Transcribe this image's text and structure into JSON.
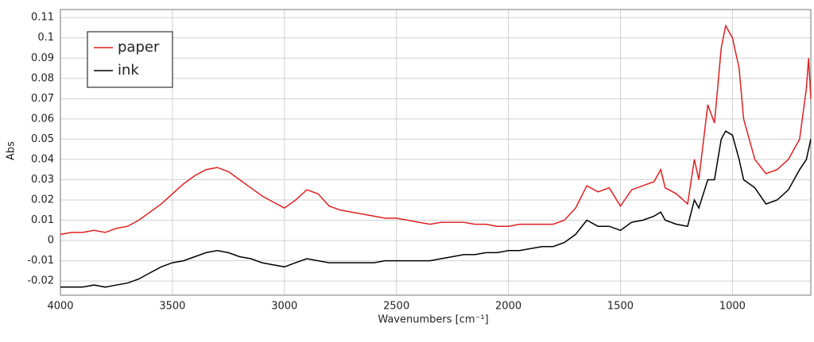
{
  "chart_data": {
    "type": "line",
    "xlabel": "Wavenumbers [cm⁻¹]",
    "ylabel": "Abs",
    "x": [
      4000,
      3950,
      3900,
      3850,
      3800,
      3750,
      3700,
      3650,
      3600,
      3550,
      3500,
      3450,
      3400,
      3350,
      3300,
      3250,
      3200,
      3150,
      3100,
      3050,
      3000,
      2950,
      2900,
      2850,
      2800,
      2750,
      2700,
      2650,
      2600,
      2550,
      2500,
      2450,
      2400,
      2350,
      2300,
      2250,
      2200,
      2150,
      2100,
      2050,
      2000,
      1950,
      1900,
      1850,
      1800,
      1750,
      1700,
      1650,
      1600,
      1550,
      1500,
      1450,
      1400,
      1350,
      1320,
      1300,
      1250,
      1200,
      1170,
      1150,
      1110,
      1080,
      1050,
      1030,
      1000,
      970,
      950,
      900,
      850,
      800,
      750,
      700,
      670,
      660,
      650
    ],
    "series": [
      {
        "name": "paper",
        "color": "#e02020",
        "values": [
          0.003,
          0.004,
          0.004,
          0.005,
          0.004,
          0.006,
          0.007,
          0.01,
          0.014,
          0.018,
          0.023,
          0.028,
          0.032,
          0.035,
          0.036,
          0.034,
          0.03,
          0.026,
          0.022,
          0.019,
          0.016,
          0.02,
          0.025,
          0.023,
          0.017,
          0.015,
          0.014,
          0.013,
          0.012,
          0.011,
          0.011,
          0.01,
          0.009,
          0.008,
          0.009,
          0.009,
          0.009,
          0.008,
          0.008,
          0.007,
          0.007,
          0.008,
          0.008,
          0.008,
          0.008,
          0.01,
          0.016,
          0.027,
          0.024,
          0.026,
          0.017,
          0.025,
          0.027,
          0.029,
          0.035,
          0.026,
          0.023,
          0.018,
          0.04,
          0.03,
          0.067,
          0.058,
          0.095,
          0.106,
          0.1,
          0.085,
          0.06,
          0.04,
          0.033,
          0.035,
          0.04,
          0.05,
          0.075,
          0.09,
          0.07
        ]
      },
      {
        "name": "ink",
        "color": "#000000",
        "values": [
          -0.023,
          -0.023,
          -0.023,
          -0.022,
          -0.023,
          -0.022,
          -0.021,
          -0.019,
          -0.016,
          -0.013,
          -0.011,
          -0.01,
          -0.008,
          -0.006,
          -0.005,
          -0.006,
          -0.008,
          -0.009,
          -0.011,
          -0.012,
          -0.013,
          -0.011,
          -0.009,
          -0.01,
          -0.011,
          -0.011,
          -0.011,
          -0.011,
          -0.011,
          -0.01,
          -0.01,
          -0.01,
          -0.01,
          -0.01,
          -0.009,
          -0.008,
          -0.007,
          -0.007,
          -0.006,
          -0.006,
          -0.005,
          -0.005,
          -0.004,
          -0.003,
          -0.003,
          -0.001,
          0.003,
          0.01,
          0.007,
          0.007,
          0.005,
          0.009,
          0.01,
          0.012,
          0.014,
          0.01,
          0.008,
          0.007,
          0.02,
          0.016,
          0.03,
          0.03,
          0.05,
          0.054,
          0.052,
          0.04,
          0.03,
          0.026,
          0.018,
          0.02,
          0.025,
          0.035,
          0.04,
          0.045,
          0.05
        ]
      }
    ],
    "xlim": [
      4000,
      650
    ],
    "xticks": [
      4000,
      3500,
      3000,
      2500,
      2000,
      1500,
      1000
    ],
    "ylim": [
      -0.027,
      0.114
    ],
    "yticks": [
      0.11,
      0.1,
      0.09,
      0.08,
      0.07,
      0.06,
      0.05,
      0.04,
      0.03,
      0.02,
      0.01,
      0,
      -0.01,
      -0.02
    ],
    "grid": true,
    "legend": "upper-left"
  }
}
